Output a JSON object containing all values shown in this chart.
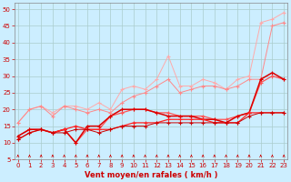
{
  "xlabel": "Vent moyen/en rafales ( km/h )",
  "background_color": "#cceeff",
  "grid_color": "#aacccc",
  "x": [
    0,
    1,
    2,
    3,
    4,
    5,
    6,
    7,
    8,
    9,
    10,
    11,
    12,
    13,
    14,
    15,
    16,
    17,
    18,
    19,
    20,
    21,
    22,
    23
  ],
  "ylim": [
    5,
    52
  ],
  "xlim": [
    -0.3,
    23.3
  ],
  "yticks": [
    5,
    10,
    15,
    20,
    25,
    30,
    35,
    40,
    45,
    50
  ],
  "xticks": [
    0,
    1,
    2,
    3,
    4,
    5,
    6,
    7,
    8,
    9,
    10,
    11,
    12,
    13,
    14,
    15,
    16,
    17,
    18,
    19,
    20,
    21,
    22,
    23
  ],
  "series": [
    {
      "color": "#ffaaaa",
      "linewidth": 0.7,
      "marker": "+",
      "markersize": 3,
      "values": [
        16,
        20,
        21,
        19,
        21,
        21,
        20,
        22,
        20,
        26,
        27,
        26,
        29,
        36,
        27,
        27,
        29,
        28,
        26,
        29,
        30,
        46,
        47,
        49
      ]
    },
    {
      "color": "#ff8888",
      "linewidth": 0.7,
      "marker": "+",
      "markersize": 3,
      "values": [
        16,
        20,
        21,
        18,
        21,
        20,
        19,
        20,
        19,
        22,
        24,
        25,
        27,
        29,
        25,
        26,
        27,
        27,
        26,
        27,
        29,
        29,
        45,
        46
      ]
    },
    {
      "color": "#ff5555",
      "linewidth": 0.9,
      "marker": "+",
      "markersize": 3.5,
      "values": [
        12,
        14,
        14,
        13,
        14,
        10,
        14,
        14,
        18,
        19,
        20,
        20,
        19,
        19,
        18,
        18,
        18,
        17,
        17,
        18,
        19,
        28,
        30,
        29
      ]
    },
    {
      "color": "#dd0000",
      "linewidth": 1.1,
      "marker": "+",
      "markersize": 3.5,
      "values": [
        12,
        14,
        14,
        13,
        14,
        10,
        15,
        15,
        18,
        20,
        20,
        20,
        19,
        18,
        18,
        18,
        17,
        17,
        16,
        18,
        19,
        29,
        31,
        29
      ]
    },
    {
      "color": "#ff2222",
      "linewidth": 0.9,
      "marker": "+",
      "markersize": 3.5,
      "values": [
        11,
        13,
        14,
        13,
        14,
        15,
        14,
        14,
        14,
        15,
        16,
        16,
        16,
        17,
        17,
        17,
        17,
        16,
        16,
        16,
        19,
        19,
        19,
        19
      ]
    },
    {
      "color": "#cc0000",
      "linewidth": 0.7,
      "marker": "+",
      "markersize": 3,
      "values": [
        11,
        13,
        14,
        13,
        13,
        14,
        14,
        13,
        14,
        15,
        15,
        15,
        16,
        16,
        16,
        16,
        16,
        16,
        16,
        16,
        18,
        19,
        19,
        19
      ]
    }
  ],
  "arrow_color": "#cc0000",
  "xlabel_color": "#cc0000",
  "tick_color": "#cc0000",
  "spine_color": "#888888",
  "tick_fontsize": 5,
  "xlabel_fontsize": 6
}
